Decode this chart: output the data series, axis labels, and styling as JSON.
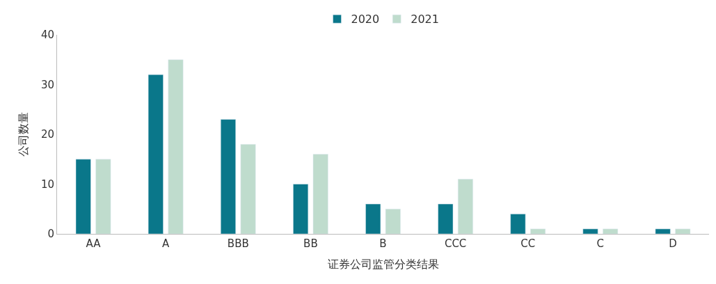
{
  "chart_data": {
    "type": "bar",
    "xlabel": "证券公司监管分类结果",
    "ylabel": "公司数量",
    "categories": [
      "AA",
      "A",
      "BBB",
      "BB",
      "B",
      "CCC",
      "CC",
      "C",
      "D"
    ],
    "series": [
      {
        "name": "2020",
        "color": "#0a778a",
        "values": [
          15,
          32,
          23,
          10,
          6,
          6,
          4,
          1,
          1
        ]
      },
      {
        "name": "2021",
        "color": "#bfdccd",
        "values": [
          15,
          35,
          18,
          16,
          5,
          11,
          1,
          1,
          1
        ]
      }
    ],
    "ylim": [
      0,
      40
    ],
    "yticks": [
      0,
      10,
      20,
      30,
      40
    ],
    "legend": "top"
  }
}
